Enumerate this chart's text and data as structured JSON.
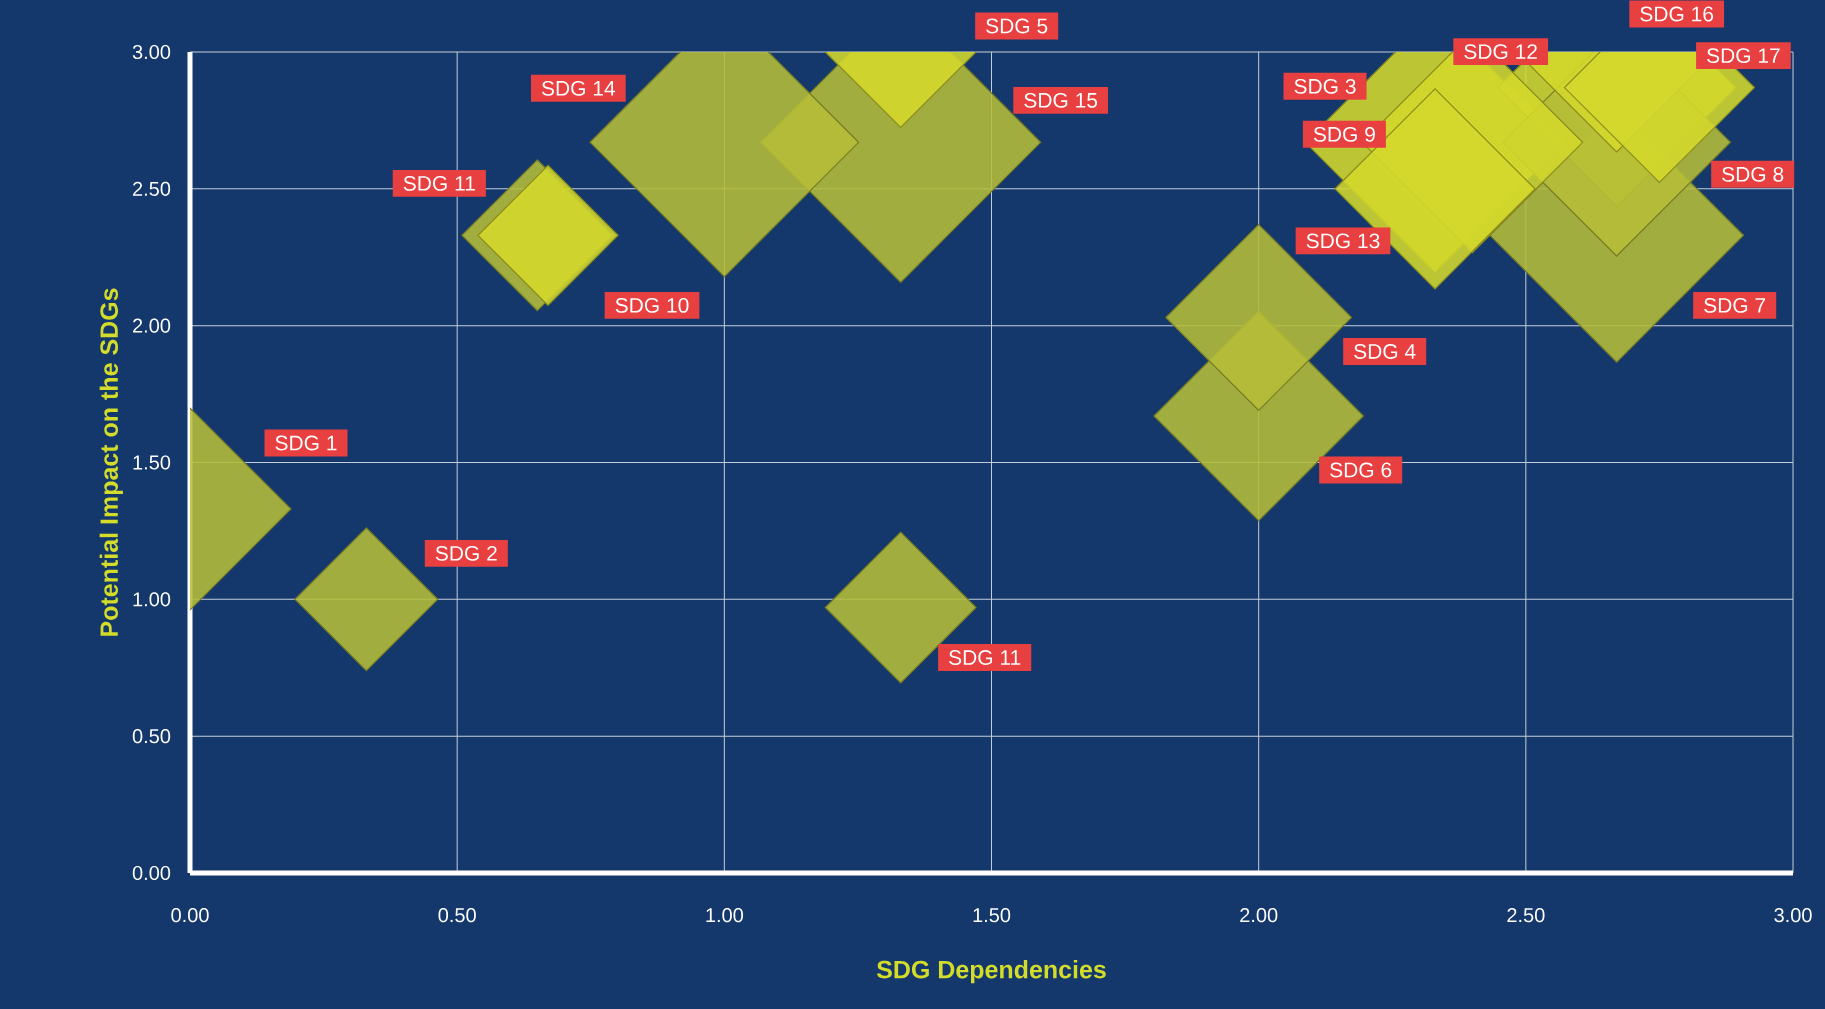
{
  "chart_data": {
    "type": "bubble",
    "xlabel": "SDG Dependencies",
    "ylabel": "Potential Impact on the SDGs",
    "series": [
      {
        "name": "SDG 1",
        "color": "#b5bd38",
        "x": [
          0
        ],
        "values": [
          1.33
        ],
        "sizes": [
          0.52
        ]
      },
      {
        "name": "SDG 2",
        "color": "#b5bd38",
        "x": [
          0.33
        ],
        "values": [
          1.0
        ],
        "sizes": [
          0.26
        ]
      },
      {
        "name": "SDG 11",
        "color": "#b5bd38",
        "x": [
          1.33
        ],
        "values": [
          0.97
        ],
        "sizes": [
          0.29
        ]
      },
      {
        "name": "SDG 11",
        "color": "#b5bd38",
        "x": [
          0.65
        ],
        "values": [
          2.33
        ],
        "sizes": [
          0.29
        ]
      },
      {
        "name": "SDG 10",
        "color": "#d4d82c",
        "x": [
          0.67
        ],
        "values": [
          2.33
        ],
        "sizes": [
          0.25
        ]
      },
      {
        "name": "SDG 14",
        "color": "#b5bd38",
        "x": [
          1.0
        ],
        "values": [
          2.67
        ],
        "sizes": [
          0.92
        ]
      },
      {
        "name": "SDG 15",
        "color": "#b5bd38",
        "x": [
          1.33
        ],
        "values": [
          2.67
        ],
        "sizes": [
          1
        ]
      },
      {
        "name": "SDG 5",
        "color": "#d4d82c",
        "x": [
          1.33
        ],
        "values": [
          3.0
        ],
        "sizes": [
          0.29
        ]
      },
      {
        "name": "SDG 4",
        "color": "#b5bd38",
        "x": [
          2.0
        ],
        "values": [
          2.03
        ],
        "sizes": [
          0.44
        ]
      },
      {
        "name": "SDG 6",
        "color": "#b5bd38",
        "x": [
          2.0
        ],
        "values": [
          1.67
        ],
        "sizes": [
          0.56
        ]
      },
      {
        "name": "SDG 3",
        "color": "#d4d82c",
        "x": [
          2.33
        ],
        "values": [
          2.67
        ],
        "sizes": [
          0.86
        ]
      },
      {
        "name": "SDG 9",
        "color": "#d4d82c",
        "x": [
          2.4
        ],
        "values": [
          2.67
        ],
        "sizes": [
          0.62
        ]
      },
      {
        "name": "SDG 13",
        "color": "#d4d82c",
        "x": [
          2.33
        ],
        "values": [
          2.5
        ],
        "sizes": [
          0.51
        ]
      },
      {
        "name": "SDG 7",
        "color": "#b5bd38",
        "x": [
          2.67
        ],
        "values": [
          2.33
        ],
        "sizes": [
          0.82
        ]
      },
      {
        "name": "SDG 8",
        "color": "#b5bd38",
        "x": [
          2.67
        ],
        "values": [
          2.67
        ],
        "sizes": [
          0.66
        ]
      },
      {
        "name": "SDG 12",
        "color": "#d4d82c",
        "x": [
          2.67
        ],
        "values": [
          2.87
        ],
        "sizes": [
          0.72
        ]
      },
      {
        "name": "SDG 16",
        "color": "#d4d82c",
        "x": [
          2.67
        ],
        "values": [
          3.0
        ],
        "sizes": [
          0.51
        ]
      },
      {
        "name": "SDG 17",
        "color": "#d4d82c",
        "x": [
          2.75
        ],
        "values": [
          2.87
        ],
        "sizes": [
          0.46
        ]
      }
    ],
    "xlim": [
      0,
      3
    ],
    "ylim": [
      0,
      3
    ],
    "xticks": [
      {
        "value": 0,
        "label": "0.00"
      },
      {
        "value": 0.5,
        "label": "0.50"
      },
      {
        "value": 1,
        "label": "1.00"
      },
      {
        "value": 1.5,
        "label": "1.50"
      },
      {
        "value": 2,
        "label": "2.00"
      },
      {
        "value": 2.5,
        "label": "2.50"
      },
      {
        "value": 3,
        "label": "3.00"
      }
    ],
    "yticks": [
      {
        "value": 0,
        "label": "0.00"
      },
      {
        "value": 0.5,
        "label": "0.50"
      },
      {
        "value": 1,
        "label": "1.00"
      },
      {
        "value": 1.5,
        "label": "1.50"
      },
      {
        "value": 2,
        "label": "2.00"
      },
      {
        "value": 2.5,
        "label": "2.50"
      },
      {
        "value": 3,
        "label": "3.00"
      }
    ],
    "grid": true,
    "marker": "diamond"
  }
}
